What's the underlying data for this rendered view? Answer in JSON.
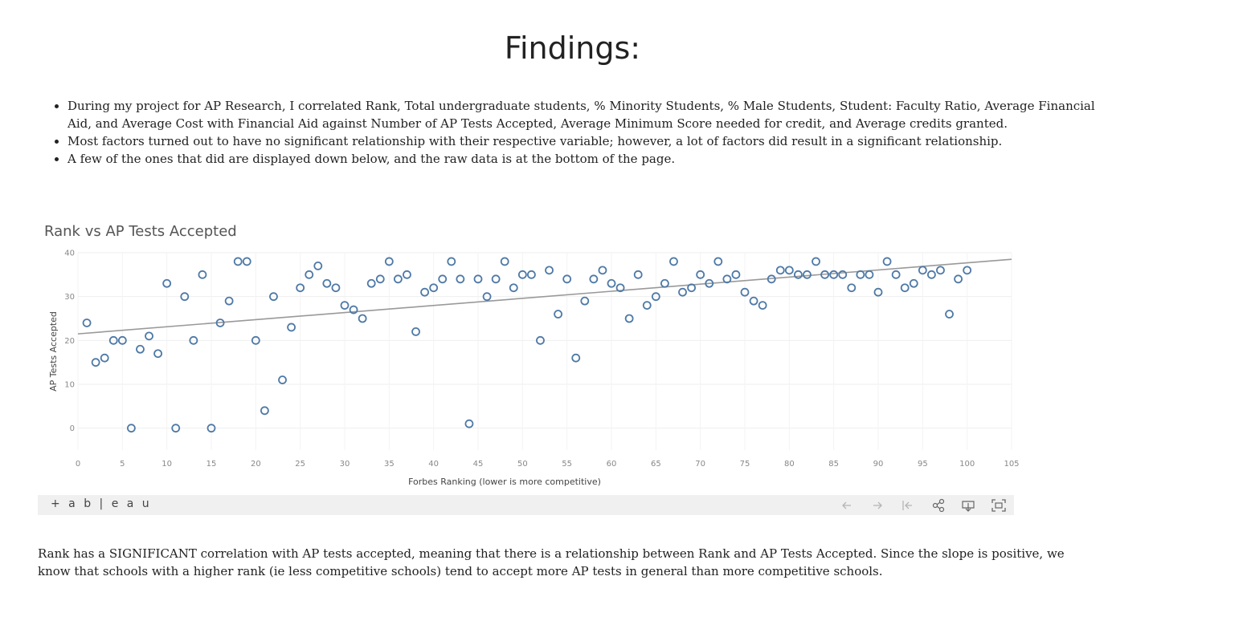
{
  "page": {
    "heading": "Findings:",
    "bullets": [
      "During my project for AP Research, I correlated Rank, Total undergraduate students, % Minority Students, % Male Students, Student: Faculty Ratio, Average Financial Aid, and Average Cost with Financial Aid against Number of AP Tests Accepted, Average Minimum Score needed for credit, and Average credits granted.",
      "Most factors turned out to have no significant relationship with their respective variable; however, a lot of factors did result in a significant relationship.",
      "A few of the ones that did are displayed down below, and the raw data is at the bottom of the page."
    ],
    "summary": "Rank has a SIGNIFICANT correlation with AP tests accepted, meaning that there is a relationship between Rank and AP Tests Accepted. Since the slope is positive, we know that schools with a higher rank (ie less competitive schools) tend to accept more AP tests in general than more competitive schools."
  },
  "viz": {
    "logo": "+ a b | e a u",
    "toolbar_icons": [
      "undo-icon",
      "redo-icon",
      "revert-icon",
      "share-icon",
      "download-icon",
      "fullscreen-icon"
    ]
  },
  "chart_data": {
    "type": "scatter",
    "title": "Rank vs AP Tests Accepted",
    "xlabel": "Forbes Ranking (lower is more competitive)",
    "ylabel": "AP Tests Accepted",
    "xlim": [
      0,
      105
    ],
    "ylim": [
      -5,
      40
    ],
    "xticks": [
      0,
      5,
      10,
      15,
      20,
      25,
      30,
      35,
      40,
      45,
      50,
      55,
      60,
      65,
      70,
      75,
      80,
      85,
      90,
      95,
      100,
      105
    ],
    "yticks": [
      0,
      10,
      20,
      30,
      40
    ],
    "grid": true,
    "marker_color": "#4e79a7",
    "trend_color": "#999999",
    "trend_line": {
      "y_at_x0": 21.5,
      "y_at_x105": 38.5
    },
    "points": [
      [
        1,
        24
      ],
      [
        2,
        15
      ],
      [
        3,
        16
      ],
      [
        4,
        20
      ],
      [
        5,
        20
      ],
      [
        6,
        0
      ],
      [
        7,
        18
      ],
      [
        8,
        21
      ],
      [
        9,
        17
      ],
      [
        10,
        33
      ],
      [
        11,
        0
      ],
      [
        12,
        30
      ],
      [
        13,
        20
      ],
      [
        14,
        35
      ],
      [
        15,
        0
      ],
      [
        16,
        24
      ],
      [
        17,
        29
      ],
      [
        18,
        38
      ],
      [
        19,
        38
      ],
      [
        20,
        20
      ],
      [
        21,
        4
      ],
      [
        22,
        30
      ],
      [
        23,
        11
      ],
      [
        24,
        23
      ],
      [
        25,
        32
      ],
      [
        26,
        35
      ],
      [
        27,
        37
      ],
      [
        28,
        33
      ],
      [
        29,
        32
      ],
      [
        30,
        28
      ],
      [
        31,
        27
      ],
      [
        32,
        25
      ],
      [
        33,
        33
      ],
      [
        34,
        34
      ],
      [
        35,
        38
      ],
      [
        36,
        34
      ],
      [
        37,
        35
      ],
      [
        38,
        22
      ],
      [
        39,
        31
      ],
      [
        40,
        32
      ],
      [
        41,
        34
      ],
      [
        42,
        38
      ],
      [
        43,
        34
      ],
      [
        44,
        1
      ],
      [
        45,
        34
      ],
      [
        46,
        30
      ],
      [
        47,
        34
      ],
      [
        48,
        38
      ],
      [
        49,
        32
      ],
      [
        50,
        35
      ],
      [
        51,
        35
      ],
      [
        52,
        20
      ],
      [
        53,
        36
      ],
      [
        54,
        26
      ],
      [
        55,
        34
      ],
      [
        56,
        16
      ],
      [
        57,
        29
      ],
      [
        58,
        34
      ],
      [
        59,
        36
      ],
      [
        60,
        33
      ],
      [
        61,
        32
      ],
      [
        62,
        25
      ],
      [
        63,
        35
      ],
      [
        64,
        28
      ],
      [
        65,
        30
      ],
      [
        66,
        33
      ],
      [
        67,
        38
      ],
      [
        68,
        31
      ],
      [
        69,
        32
      ],
      [
        70,
        35
      ],
      [
        71,
        33
      ],
      [
        72,
        38
      ],
      [
        73,
        34
      ],
      [
        74,
        35
      ],
      [
        75,
        31
      ],
      [
        76,
        29
      ],
      [
        77,
        28
      ],
      [
        78,
        34
      ],
      [
        79,
        36
      ],
      [
        80,
        36
      ],
      [
        81,
        35
      ],
      [
        82,
        35
      ],
      [
        83,
        38
      ],
      [
        84,
        35
      ],
      [
        85,
        35
      ],
      [
        86,
        35
      ],
      [
        87,
        32
      ],
      [
        88,
        35
      ],
      [
        89,
        35
      ],
      [
        90,
        31
      ],
      [
        91,
        38
      ],
      [
        92,
        35
      ],
      [
        93,
        32
      ],
      [
        94,
        33
      ],
      [
        95,
        36
      ],
      [
        96,
        35
      ],
      [
        97,
        36
      ],
      [
        98,
        26
      ],
      [
        99,
        34
      ],
      [
        100,
        36
      ]
    ]
  }
}
